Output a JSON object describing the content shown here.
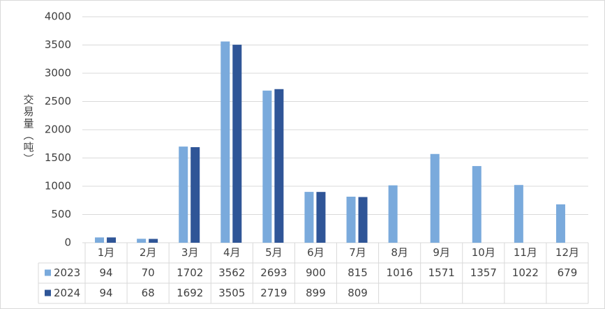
{
  "chart_data": {
    "type": "bar",
    "y_label": "交易量（吨）",
    "categories": [
      "1月",
      "2月",
      "3月",
      "4月",
      "5月",
      "6月",
      "7月",
      "8月",
      "9月",
      "10月",
      "11月",
      "12月"
    ],
    "series": [
      {
        "name": "2023",
        "color": "#7aaadc",
        "values": [
          94,
          70,
          1702,
          3562,
          2693,
          900,
          815,
          1016,
          1571,
          1357,
          1022,
          679
        ]
      },
      {
        "name": "2024",
        "color": "#2f5597",
        "values": [
          94,
          68,
          1692,
          3505,
          2719,
          899,
          809,
          null,
          null,
          null,
          null,
          null
        ]
      }
    ],
    "ylim": [
      0,
      4000
    ],
    "yticks": [
      0,
      500,
      1000,
      1500,
      2000,
      2500,
      3000,
      3500,
      4000
    ],
    "grid": true
  }
}
